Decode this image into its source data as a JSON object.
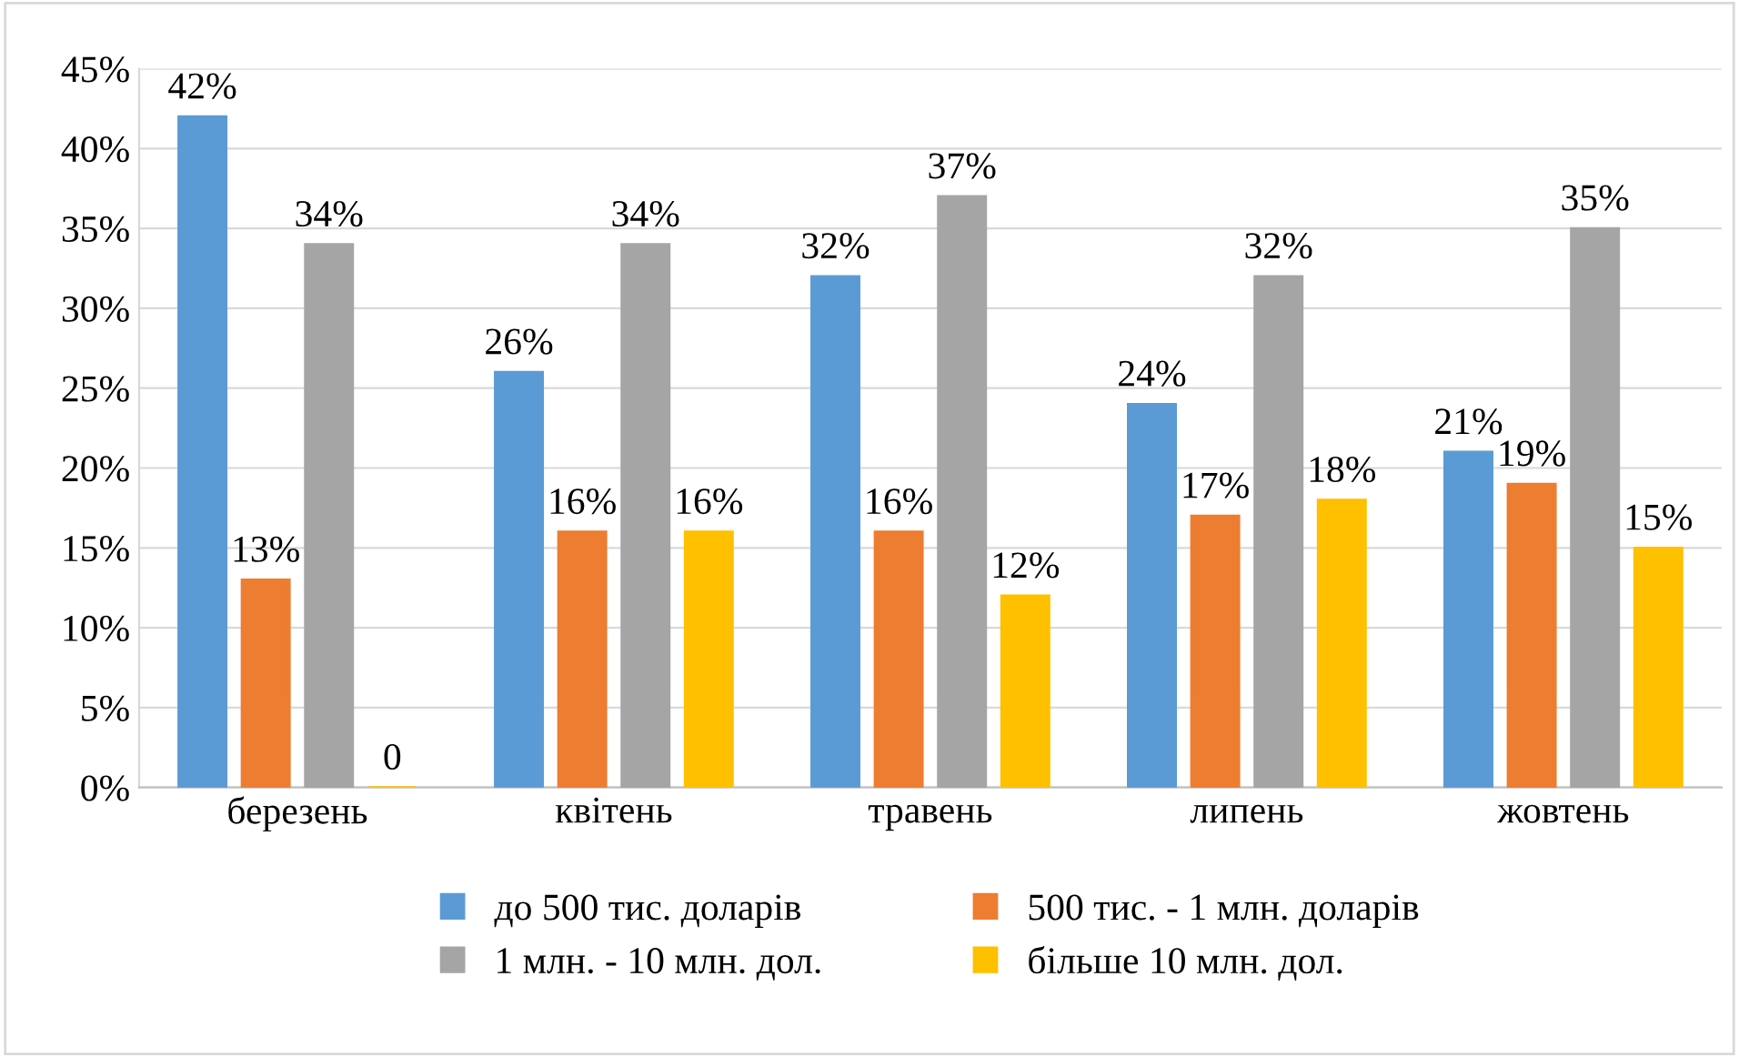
{
  "chart_data": {
    "type": "bar",
    "categories": [
      "березень",
      "квітень",
      "травень",
      "липень",
      "жовтень"
    ],
    "series": [
      {
        "name": "до 500 тис. доларів",
        "color": "#5b9bd5",
        "values": [
          42,
          26,
          32,
          24,
          21
        ],
        "value_labels": [
          "42%",
          "26%",
          "32%",
          "24%",
          "21%"
        ]
      },
      {
        "name": "500 тис. - 1 млн. доларів",
        "color": "#ed7d31",
        "values": [
          13,
          16,
          16,
          17,
          19
        ],
        "value_labels": [
          "13%",
          "16%",
          "16%",
          "17%",
          "19%"
        ]
      },
      {
        "name": "1 млн. - 10 млн. дол.",
        "color": "#a5a5a5",
        "values": [
          34,
          34,
          37,
          32,
          35
        ],
        "value_labels": [
          "34%",
          "34%",
          "37%",
          "32%",
          "35%"
        ]
      },
      {
        "name": "більше 10 млн. дол.",
        "color": "#ffc000",
        "values": [
          0,
          16,
          12,
          18,
          15
        ],
        "value_labels": [
          "0",
          "16%",
          "12%",
          "18%",
          "15%"
        ]
      }
    ],
    "ylim": [
      0,
      45
    ],
    "yticks": [
      {
        "value": 0,
        "label": "0%"
      },
      {
        "value": 5,
        "label": "5%"
      },
      {
        "value": 10,
        "label": "10%"
      },
      {
        "value": 15,
        "label": "15%"
      },
      {
        "value": 20,
        "label": "20%"
      },
      {
        "value": 25,
        "label": "25%"
      },
      {
        "value": 30,
        "label": "30%"
      },
      {
        "value": 35,
        "label": "35%"
      },
      {
        "value": 40,
        "label": "40%"
      },
      {
        "value": 45,
        "label": "45%"
      }
    ],
    "grid": "y",
    "legend": "bottom"
  }
}
